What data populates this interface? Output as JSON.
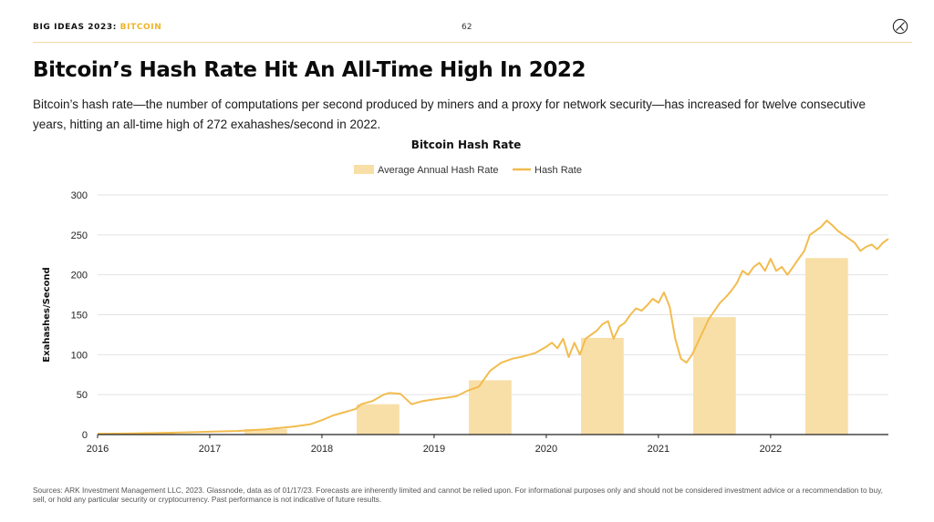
{
  "header": {
    "section": "BIG IDEAS 2023",
    "separator": ": ",
    "topic": "BITCOIN",
    "page_number": "62"
  },
  "slide": {
    "title": "Bitcoin’s Hash Rate Hit An All-Time High In 2022",
    "subtitle": "Bitcoin’s hash rate—the number of computations per second produced by miners and a proxy for network security—has increased for twelve consecutive years, hitting an all-time high of 272 exahashes/second in 2022."
  },
  "footer": {
    "sources": "Sources: ARK Investment Management LLC, 2023. Glassnode, data as of 01/17/23. Forecasts are inherently limited and cannot be relied upon. For informational purposes only and should not be considered investment advice or a recommendation to buy, sell, or hold any particular security or cryptocurrency. Past performance is not indicative of future results."
  },
  "colors": {
    "accent": "#f0b429",
    "bar_fill": "#f8dfa7",
    "line": "#f2bc4e",
    "grid": "#e3e3e3",
    "axis": "#222222"
  },
  "chart_data": {
    "type": "bar+line",
    "title": "Bitcoin Hash Rate",
    "ylabel": "Exahashes/Second",
    "xlabel": "",
    "ylim": [
      0,
      300
    ],
    "xlim": [
      2016.0,
      2023.05
    ],
    "yticks": [
      0,
      50,
      100,
      150,
      200,
      250,
      300
    ],
    "xticks": [
      2016,
      2017,
      2018,
      2019,
      2020,
      2021,
      2022
    ],
    "grid": "horizontal",
    "legend_position": "top-center",
    "legend": [
      "Average Annual Hash Rate",
      "Hash Rate"
    ],
    "bars": {
      "name": "Average Annual Hash Rate",
      "x_centers": [
        2016.5,
        2017.5,
        2018.5,
        2019.5,
        2020.5,
        2021.5,
        2022.5
      ],
      "values": [
        1.5,
        7,
        38,
        68,
        121,
        147,
        221
      ]
    },
    "line": {
      "name": "Hash Rate",
      "x": [
        2016.0,
        2016.25,
        2016.5,
        2016.75,
        2017.0,
        2017.25,
        2017.5,
        2017.6,
        2017.75,
        2017.9,
        2018.0,
        2018.1,
        2018.2,
        2018.3,
        2018.35,
        2018.45,
        2018.55,
        2018.6,
        2018.7,
        2018.8,
        2018.9,
        2019.0,
        2019.1,
        2019.2,
        2019.3,
        2019.4,
        2019.45,
        2019.5,
        2019.6,
        2019.7,
        2019.8,
        2019.9,
        2020.0,
        2020.05,
        2020.1,
        2020.15,
        2020.2,
        2020.25,
        2020.3,
        2020.35,
        2020.4,
        2020.45,
        2020.5,
        2020.55,
        2020.6,
        2020.65,
        2020.7,
        2020.75,
        2020.8,
        2020.85,
        2020.9,
        2020.95,
        2021.0,
        2021.05,
        2021.1,
        2021.15,
        2021.2,
        2021.25,
        2021.3,
        2021.35,
        2021.4,
        2021.45,
        2021.5,
        2021.55,
        2021.6,
        2021.65,
        2021.7,
        2021.75,
        2021.8,
        2021.85,
        2021.9,
        2021.95,
        2022.0,
        2022.05,
        2022.1,
        2022.15,
        2022.2,
        2022.25,
        2022.3,
        2022.35,
        2022.4,
        2022.45,
        2022.5,
        2022.55,
        2022.6,
        2022.65,
        2022.7,
        2022.75,
        2022.8,
        2022.85,
        2022.9,
        2022.95,
        2023.0,
        2023.05
      ],
      "values": [
        1,
        1.2,
        1.8,
        2.5,
        3.5,
        4.5,
        6.5,
        8,
        10,
        13,
        18,
        24,
        28,
        32,
        38,
        42,
        50,
        52,
        51,
        38,
        42,
        44,
        46,
        48,
        55,
        60,
        70,
        80,
        90,
        95,
        98,
        102,
        110,
        115,
        108,
        120,
        97,
        115,
        100,
        120,
        125,
        130,
        138,
        142,
        120,
        135,
        140,
        150,
        158,
        155,
        162,
        170,
        165,
        178,
        160,
        120,
        95,
        90,
        100,
        115,
        130,
        145,
        155,
        165,
        172,
        180,
        190,
        205,
        200,
        210,
        215,
        205,
        220,
        205,
        210,
        200,
        210,
        220,
        230,
        250,
        255,
        260,
        268,
        262,
        255,
        250,
        245,
        240,
        230,
        235,
        238,
        232,
        240,
        245
      ]
    }
  }
}
